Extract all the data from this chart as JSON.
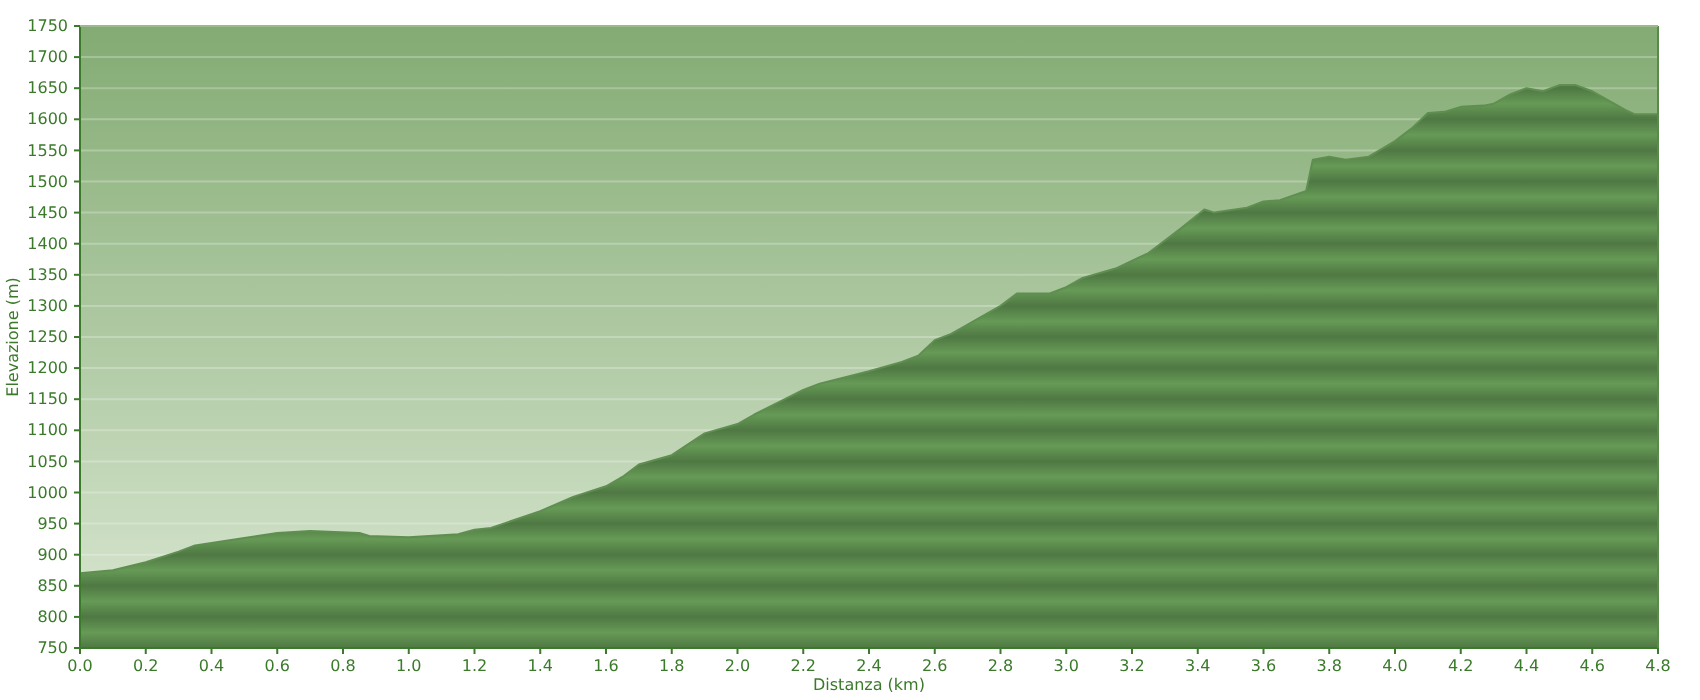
{
  "chart_data": {
    "type": "area",
    "xlabel": "Distanza  (km)",
    "ylabel": "Elevazione (m)",
    "x": [
      0,
      0.1,
      0.2,
      0.3,
      0.35,
      0.5,
      0.6,
      0.7,
      0.85,
      0.88,
      1.0,
      1.15,
      1.2,
      1.25,
      1.4,
      1.5,
      1.6,
      1.65,
      1.7,
      1.8,
      1.9,
      2.0,
      2.05,
      2.2,
      2.25,
      2.4,
      2.5,
      2.55,
      2.6,
      2.65,
      2.7,
      2.8,
      2.85,
      2.95,
      3.0,
      3.05,
      3.15,
      3.25,
      3.35,
      3.42,
      3.45,
      3.55,
      3.6,
      3.65,
      3.73,
      3.75,
      3.8,
      3.85,
      3.92,
      4.0,
      4.05,
      4.1,
      4.15,
      4.2,
      4.27,
      4.3,
      4.35,
      4.4,
      4.45,
      4.5,
      4.55,
      4.6,
      4.7,
      4.73,
      4.8
    ],
    "series": [
      {
        "color": "#5f8f50",
        "values": [
          870,
          875,
          888,
          905,
          915,
          927,
          935,
          938,
          935,
          930,
          928,
          933,
          940,
          943,
          970,
          993,
          1010,
          1025,
          1045,
          1060,
          1095,
          1110,
          1125,
          1165,
          1175,
          1195,
          1210,
          1220,
          1245,
          1255,
          1270,
          1300,
          1320,
          1320,
          1330,
          1345,
          1360,
          1385,
          1425,
          1455,
          1450,
          1458,
          1468,
          1470,
          1485,
          1535,
          1540,
          1535,
          1540,
          1565,
          1585,
          1610,
          1612,
          1620,
          1622,
          1625,
          1640,
          1650,
          1645,
          1655,
          1655,
          1645,
          1615,
          1608,
          1608
        ]
      }
    ],
    "xlim": [
      0,
      4.8
    ],
    "xticks": [
      {
        "value": 0,
        "label": "0.0"
      },
      0.2,
      0.4,
      0.6,
      0.8,
      {
        "value": 1,
        "label": "1.0"
      },
      1.2,
      1.4,
      1.6,
      1.8,
      {
        "value": 2,
        "label": "2.0"
      },
      2.2,
      2.4,
      2.6,
      2.8,
      {
        "value": 3,
        "label": "3.0"
      },
      3.2,
      3.4,
      3.6,
      3.8,
      {
        "value": 4,
        "label": "4.0"
      },
      4.2,
      4.4,
      4.6,
      4.8
    ],
    "ylim": [
      750,
      1750
    ],
    "yticks": [
      750,
      800,
      850,
      900,
      950,
      1000,
      1050,
      1100,
      1150,
      1200,
      1250,
      1300,
      1350,
      1400,
      1450,
      1500,
      1550,
      1600,
      1650,
      1700,
      1750
    ],
    "grid": "y"
  }
}
